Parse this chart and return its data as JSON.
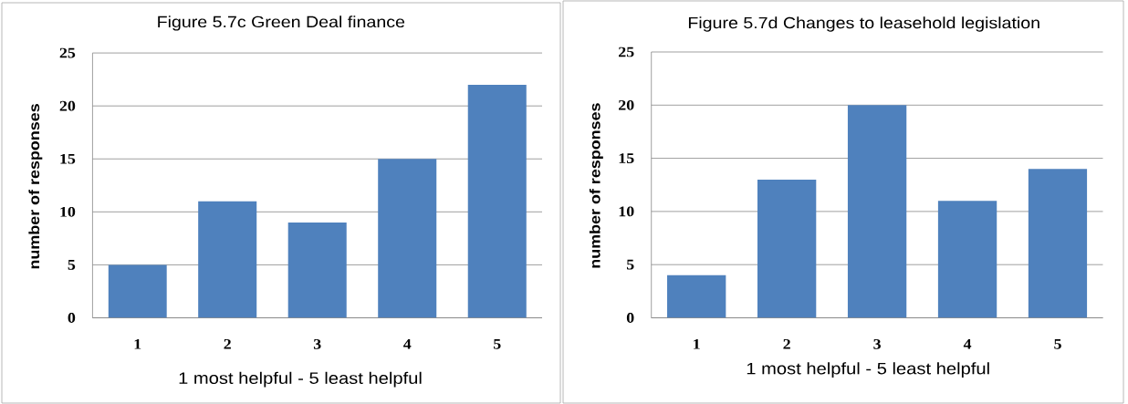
{
  "chart_data": [
    {
      "type": "bar",
      "title": "Figure 5.7c Green Deal finance",
      "xlabel": "1 most helpful - 5 least helpful",
      "ylabel": "number of responses",
      "categories": [
        "1",
        "2",
        "3",
        "4",
        "5"
      ],
      "values": [
        5,
        11,
        9,
        15,
        22
      ],
      "color": "#4f81bd",
      "ylim": [
        0,
        25
      ],
      "yticks": [
        0,
        5,
        10,
        15,
        20,
        25
      ],
      "grid": "y"
    },
    {
      "type": "bar",
      "title": "Figure 5.7d Changes to leasehold legislation",
      "xlabel": "1 most helpful - 5 least helpful",
      "ylabel": "number of responses",
      "categories": [
        "1",
        "2",
        "3",
        "4",
        "5"
      ],
      "values": [
        4,
        13,
        20,
        11,
        14
      ],
      "color": "#4f81bd",
      "ylim": [
        0,
        25
      ],
      "yticks": [
        0,
        5,
        10,
        15,
        20,
        25
      ],
      "grid": "y"
    }
  ]
}
